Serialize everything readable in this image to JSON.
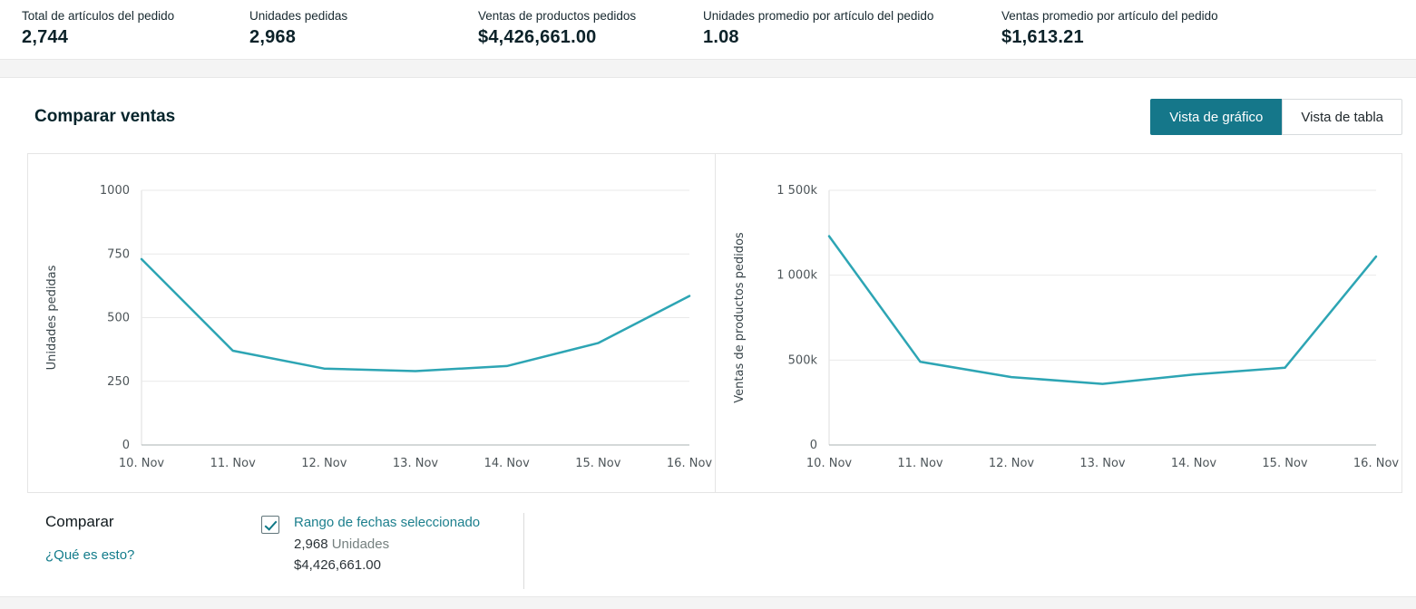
{
  "accent": "#15778a",
  "metrics": [
    {
      "label": "Total de artículos del pedido",
      "value": "2,744"
    },
    {
      "label": "Unidades pedidas",
      "value": "2,968"
    },
    {
      "label": "Ventas de productos pedidos",
      "value": "$4,426,661.00"
    },
    {
      "label": "Unidades promedio por artículo del pedido",
      "value": "1.08"
    },
    {
      "label": "Ventas promedio por artículo del pedido",
      "value": "$1,613.21"
    }
  ],
  "section": {
    "title": "Comparar ventas",
    "view_toggle": {
      "graph_label": "Vista de gráfico",
      "table_label": "Vista de tabla",
      "active": "graph"
    }
  },
  "chart_data": [
    {
      "type": "line",
      "x": [
        "10. Nov",
        "11. Nov",
        "12. Nov",
        "13. Nov",
        "14. Nov",
        "15. Nov",
        "16. Nov"
      ],
      "values": [
        730,
        370,
        300,
        290,
        310,
        400,
        585
      ],
      "ylabel": "Unidades pedidas",
      "yticks": [
        0,
        250,
        500,
        750,
        1000
      ],
      "ytick_labels": [
        "0",
        "250",
        "500",
        "750",
        "1000"
      ],
      "ylim": [
        0,
        1000
      ],
      "grid": true,
      "legend": "none",
      "line_color": "#2da5b4"
    },
    {
      "type": "line",
      "x": [
        "10. Nov",
        "11. Nov",
        "12. Nov",
        "13. Nov",
        "14. Nov",
        "15. Nov",
        "16. Nov"
      ],
      "values": [
        1230000,
        490000,
        400000,
        360000,
        415000,
        455000,
        1110000
      ],
      "ylabel": "Ventas de productos pedidos",
      "yticks": [
        0,
        500000,
        1000000,
        1500000
      ],
      "ytick_labels": [
        "0",
        "500k",
        "1 000k",
        "1 500k"
      ],
      "ylim": [
        0,
        1500000
      ],
      "grid": true,
      "legend": "none",
      "line_color": "#2da5b4"
    }
  ],
  "compare": {
    "title": "Comparar",
    "help_link": "¿Qué es esto?",
    "legend": {
      "checked": true,
      "label": "Rango de fechas seleccionado",
      "units_value": "2,968",
      "units_suffix": "Unidades",
      "sales_value": "$4,426,661.00"
    }
  }
}
